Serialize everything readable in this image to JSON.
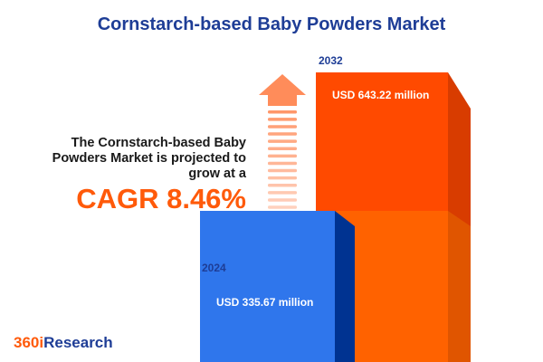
{
  "title": "Cornstarch-based Baby Powders Market",
  "description": [
    "The Cornstarch-based Baby",
    "Powders Market is projected to",
    "grow at a"
  ],
  "cagr": "CAGR 8.46%",
  "logo": {
    "number": "360i",
    "word": "Research"
  },
  "colors": {
    "title": "#1e3d96",
    "accent": "#ff5a0a",
    "bar_2024": "#2f76ec",
    "bar_2032": "#ff4a00"
  },
  "chart_data": {
    "type": "bar",
    "categories": [
      "2024",
      "2032"
    ],
    "values": [
      335.67,
      643.22
    ],
    "unit": "USD million",
    "data_labels": [
      "USD 335.67 million",
      "USD 643.22 million"
    ]
  }
}
